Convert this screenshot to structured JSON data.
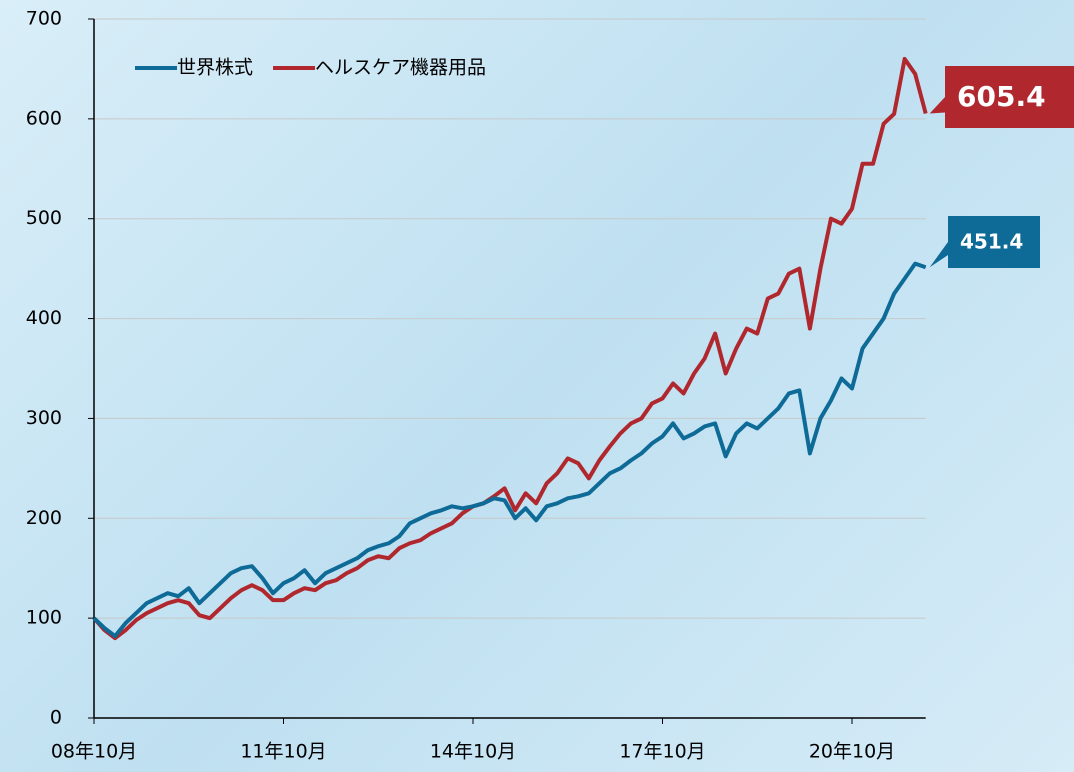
{
  "chart_data": {
    "type": "line",
    "categories": [
      "08年10月",
      null,
      null,
      null,
      null,
      null,
      null,
      null,
      null,
      null,
      null,
      null,
      null,
      null,
      null,
      null,
      null,
      null,
      "11年10月",
      null,
      null,
      null,
      null,
      null,
      null,
      null,
      null,
      null,
      null,
      null,
      null,
      null,
      null,
      null,
      null,
      null,
      "14年10月",
      null,
      null,
      null,
      null,
      null,
      null,
      null,
      null,
      null,
      null,
      null,
      null,
      null,
      null,
      null,
      null,
      null,
      "17年10月",
      null,
      null,
      null,
      null,
      null,
      null,
      null,
      null,
      null,
      null,
      null,
      null,
      null,
      null,
      null,
      null,
      null,
      "20年10月",
      null,
      null,
      null,
      null,
      null,
      null,
      null
    ],
    "series": [
      {
        "name": "世界株式",
        "color": "#0e6a96",
        "values": [
          100,
          90,
          82,
          95,
          105,
          115,
          120,
          125,
          122,
          130,
          115,
          125,
          135,
          145,
          150,
          152,
          140,
          125,
          135,
          140,
          148,
          135,
          145,
          150,
          155,
          160,
          168,
          172,
          175,
          182,
          195,
          200,
          205,
          208,
          212,
          210,
          212,
          215,
          220,
          218,
          200,
          210,
          198,
          212,
          215,
          220,
          222,
          225,
          235,
          245,
          250,
          258,
          265,
          275,
          282,
          295,
          280,
          285,
          292,
          295,
          262,
          285,
          295,
          290,
          300,
          310,
          325,
          328,
          265,
          300,
          318,
          340,
          330,
          370,
          385,
          400,
          425,
          440,
          455,
          451.4
        ]
      },
      {
        "name": "ヘルスケア機器用品",
        "color": "#b0282d",
        "values": [
          100,
          88,
          80,
          88,
          98,
          105,
          110,
          115,
          118,
          115,
          103,
          100,
          110,
          120,
          128,
          133,
          128,
          118,
          118,
          125,
          130,
          128,
          135,
          138,
          145,
          150,
          158,
          162,
          160,
          170,
          175,
          178,
          185,
          190,
          195,
          205,
          212,
          215,
          222,
          230,
          208,
          225,
          215,
          235,
          245,
          260,
          255,
          240,
          258,
          272,
          285,
          295,
          300,
          315,
          320,
          335,
          325,
          345,
          360,
          385,
          345,
          370,
          390,
          385,
          420,
          425,
          445,
          450,
          390,
          450,
          500,
          495,
          510,
          555,
          555,
          595,
          605,
          660,
          645,
          605.4
        ]
      }
    ],
    "ylim": [
      0,
      700
    ],
    "yticks": [
      0,
      100,
      200,
      300,
      400,
      500,
      600,
      700
    ],
    "grid": true
  }
}
